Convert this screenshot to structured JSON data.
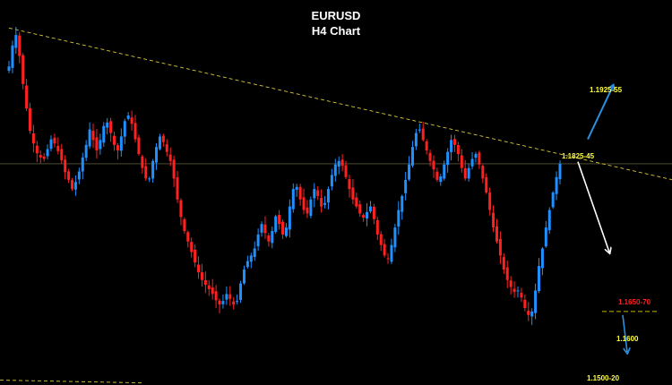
{
  "colors": {
    "background": "#000000",
    "bull_candle": "#1e90ff",
    "bear_candle": "#ff2020",
    "trendline": "#d8c83a",
    "price_line": "#7a7a50",
    "support_line": "#c8b400",
    "target_up_arrow": "#2b8fe0",
    "target_down_arrow": "#ffffff",
    "final_arrow": "#2b8fe0",
    "label_yellow": "#ffff3a",
    "label_red": "#ff2020"
  },
  "chart_data": {
    "type": "candlestick",
    "title": "EURUSD",
    "subtitle": "H4 Chart",
    "xlabel": "",
    "ylabel": "",
    "grid": false,
    "ylim": [
      1.1475,
      1.2025
    ],
    "current_price": 1.1791,
    "trendline": {
      "from": {
        "bar": 0,
        "price": 1.1985
      },
      "to": {
        "bar": 170,
        "price": 1.179
      }
    },
    "levels": [
      {
        "label": "1.1925-55",
        "price": 1.189,
        "color": "#ffff3a"
      },
      {
        "label": "1.1825-45",
        "price": 1.1812,
        "color": "#ffff3a"
      },
      {
        "label": "1.1650-70",
        "price": 1.1641,
        "color": "#ff2020"
      },
      {
        "label": "1.1600",
        "price": 1.158,
        "color": "#ffff3a"
      },
      {
        "label": "1.1500-20",
        "price": 1.1508,
        "color": "#ffff3a"
      }
    ],
    "projection": [
      {
        "from_price": 1.1826,
        "to_price": 1.1902,
        "direction": "up"
      },
      {
        "from_price": 1.1794,
        "to_price": 1.1665,
        "direction": "down"
      },
      {
        "from_price": 1.1575,
        "to_price": 1.1522,
        "direction": "down"
      }
    ],
    "close_path": [
      1.193,
      1.196,
      1.1975,
      1.1945,
      1.1905,
      1.187,
      1.1838,
      1.182,
      1.1806,
      1.18,
      1.1798,
      1.1812,
      1.1826,
      1.182,
      1.1809,
      1.1796,
      1.1779,
      1.1768,
      1.1755,
      1.1765,
      1.178,
      1.18,
      1.1818,
      1.184,
      1.1825,
      1.181,
      1.1825,
      1.1845,
      1.185,
      1.1835,
      1.1818,
      1.181,
      1.183,
      1.1852,
      1.186,
      1.1848,
      1.1826,
      1.1805,
      1.1785,
      1.177,
      1.177,
      1.1795,
      1.1815,
      1.183,
      1.1822,
      1.1808,
      1.1795,
      1.177,
      1.174,
      1.1715,
      1.1695,
      1.168,
      1.1665,
      1.165,
      1.1636,
      1.1625,
      1.1618,
      1.1612,
      1.1605,
      1.1596,
      1.159,
      1.1595,
      1.1605,
      1.1598,
      1.159,
      1.1595,
      1.162,
      1.164,
      1.1652,
      1.166,
      1.167,
      1.169,
      1.1705,
      1.1692,
      1.168,
      1.1695,
      1.1716,
      1.1705,
      1.169,
      1.17,
      1.173,
      1.1755,
      1.1758,
      1.174,
      1.1725,
      1.172,
      1.174,
      1.1755,
      1.1745,
      1.173,
      1.1735,
      1.1755,
      1.1775,
      1.179,
      1.1795,
      1.1788,
      1.1772,
      1.1755,
      1.174,
      1.173,
      1.172,
      1.1714,
      1.1722,
      1.173,
      1.1712,
      1.169,
      1.1675,
      1.166,
      1.1655,
      1.1675,
      1.17,
      1.1725,
      1.1745,
      1.1768,
      1.179,
      1.1815,
      1.1835,
      1.184,
      1.1825,
      1.181,
      1.1795,
      1.1783,
      1.1768,
      1.1773,
      1.179,
      1.1808,
      1.1825,
      1.1818,
      1.1805,
      1.1785,
      1.177,
      1.1785,
      1.1798,
      1.1805,
      1.179,
      1.177,
      1.175,
      1.1725,
      1.17,
      1.168,
      1.166,
      1.164,
      1.1625,
      1.1615,
      1.1608,
      1.161,
      1.16,
      1.1585,
      1.1575,
      1.158,
      1.161,
      1.1645,
      1.167,
      1.17,
      1.1725,
      1.175,
      1.1772,
      1.1791
    ]
  },
  "labels": {
    "title": "EURUSD",
    "subtitle": "H4 Chart",
    "l1": "1.1925-55",
    "l2": "1.1825-45",
    "l3": "1.1650-70",
    "l4": "1.1600",
    "l5": "1.1500-20"
  }
}
